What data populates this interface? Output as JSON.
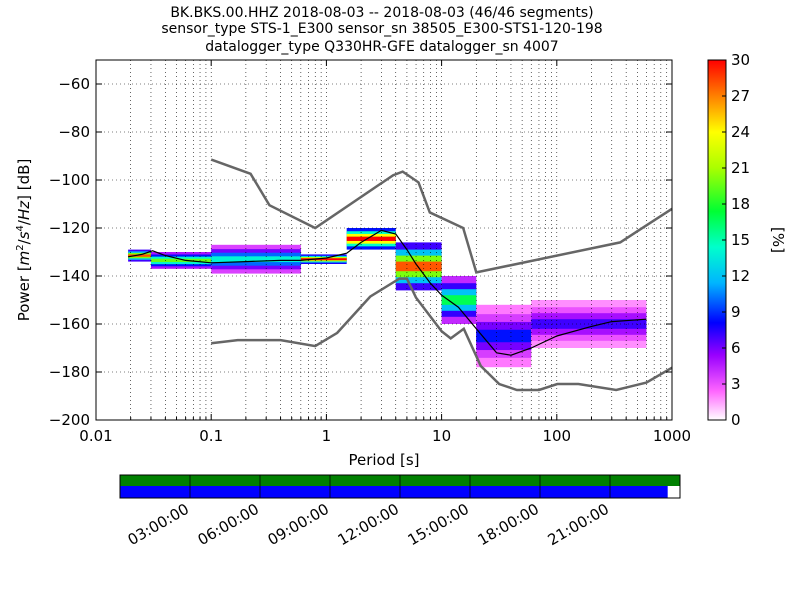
{
  "title_lines": [
    "BK.BKS.00.HHZ   2018-08-03 -- 2018-08-03  (46/46 segments)",
    "sensor_type STS-1_E300 sensor_sn 38505_E300-STS1-120-198",
    "datalogger_type Q330HR-GFE datalogger_sn 4007"
  ],
  "chart_data": {
    "type": "heatmap",
    "xlabel": "Period [s]",
    "ylabel": "Power [m²/s⁴/Hz] [dB]",
    "ylabel_parts": {
      "prefix": "Power [",
      "m": "m",
      "s": "s",
      "hz": "Hz",
      "suffix": "] [dB]",
      "exp_m": "2",
      "exp_s": "4"
    },
    "xscale": "log",
    "xlim": [
      0.01,
      1000
    ],
    "ylim": [
      -200,
      -50
    ],
    "xticks": [
      0.01,
      0.1,
      1,
      10,
      100,
      1000
    ],
    "xtick_labels": [
      "0.01",
      "0.1",
      "1",
      "10",
      "100",
      "1000"
    ],
    "yticks": [
      -200,
      -180,
      -160,
      -140,
      -120,
      -100,
      -80,
      -60
    ],
    "ytick_labels": [
      "−200",
      "−180",
      "−160",
      "−140",
      "−120",
      "−100",
      "−80",
      "−60"
    ],
    "grid": true,
    "colorbar": {
      "label": "[%]",
      "min": 0,
      "max": 30,
      "ticks": [
        0,
        3,
        6,
        9,
        12,
        15,
        18,
        21,
        24,
        27,
        30
      ],
      "tick_labels": [
        "0",
        "3",
        "6",
        "9",
        "12",
        "15",
        "18",
        "21",
        "24",
        "27",
        "30"
      ]
    },
    "noise_models": [
      {
        "points": [
          [
            0.1,
            -91.5
          ],
          [
            0.22,
            -97.4
          ],
          [
            0.32,
            -110.5
          ],
          [
            0.8,
            -120
          ],
          [
            3.8,
            -98
          ],
          [
            4.6,
            -96.5
          ],
          [
            6.3,
            -101
          ],
          [
            7.9,
            -113.5
          ],
          [
            15.4,
            -120
          ],
          [
            20,
            -138.5
          ],
          [
            354.8,
            -126
          ],
          [
            1000,
            -112
          ]
        ]
      },
      {
        "points": [
          [
            0.1,
            -168
          ],
          [
            0.17,
            -166.7
          ],
          [
            0.4,
            -166.7
          ],
          [
            0.8,
            -169.2
          ],
          [
            1.24,
            -163.7
          ],
          [
            2.4,
            -148.6
          ],
          [
            4.3,
            -141.1
          ],
          [
            5.0,
            -141.1
          ],
          [
            6.0,
            -149
          ],
          [
            10,
            -163
          ],
          [
            12,
            -166
          ],
          [
            15.6,
            -162
          ],
          [
            21.9,
            -177.5
          ],
          [
            31.6,
            -185
          ],
          [
            45,
            -187.5
          ],
          [
            70,
            -187.5
          ],
          [
            101,
            -185
          ],
          [
            154,
            -185
          ],
          [
            328,
            -187.5
          ],
          [
            600,
            -184.4
          ],
          [
            1000,
            -178.2
          ]
        ]
      }
    ],
    "mode_curve": [
      [
        0.019,
        -132
      ],
      [
        0.025,
        -131
      ],
      [
        0.031,
        -129.5
      ],
      [
        0.04,
        -131.5
      ],
      [
        0.06,
        -133.5
      ],
      [
        0.1,
        -134.5
      ],
      [
        0.2,
        -134
      ],
      [
        0.4,
        -133.5
      ],
      [
        0.6,
        -133.5
      ],
      [
        1,
        -132.5
      ],
      [
        1.5,
        -130.5
      ],
      [
        2,
        -126
      ],
      [
        3,
        -121
      ],
      [
        4,
        -122.5
      ],
      [
        5,
        -129
      ],
      [
        6,
        -135
      ],
      [
        8,
        -143
      ],
      [
        10,
        -148
      ],
      [
        14,
        -153
      ],
      [
        20,
        -162
      ],
      [
        30,
        -172
      ],
      [
        40,
        -173
      ],
      [
        60,
        -170
      ],
      [
        100,
        -165
      ],
      [
        200,
        -161
      ],
      [
        300,
        -159
      ],
      [
        600,
        -158
      ]
    ],
    "pdf_bands": [
      {
        "x": [
          0.019,
          0.03
        ],
        "y": [
          -134,
          -129
        ],
        "pct": 20
      },
      {
        "x": [
          0.03,
          0.1
        ],
        "y": [
          -137,
          -130
        ],
        "pct": 14
      },
      {
        "x": [
          0.1,
          0.6
        ],
        "y": [
          -139,
          -127
        ],
        "pct": 10
      },
      {
        "x": [
          0.6,
          1.5
        ],
        "y": [
          -135,
          -131
        ],
        "pct": 22
      },
      {
        "x": [
          1.5,
          4
        ],
        "y": [
          -129,
          -120
        ],
        "pct": 24
      },
      {
        "x": [
          4,
          10
        ],
        "y": [
          -146,
          -126
        ],
        "pct": 20
      },
      {
        "x": [
          10,
          20
        ],
        "y": [
          -160,
          -140
        ],
        "pct": 12
      },
      {
        "x": [
          20,
          60
        ],
        "y": [
          -178,
          -152
        ],
        "pct": 6
      },
      {
        "x": [
          60,
          600
        ],
        "y": [
          -170,
          -150
        ],
        "pct": 5
      }
    ]
  },
  "timeline": {
    "tick_labels": [
      "03:00:00",
      "06:00:00",
      "09:00:00",
      "12:00:00",
      "15:00:00",
      "18:00:00",
      "21:00:00"
    ],
    "top_bar_color": "#008000",
    "bottom_bar_color": "#0000ff",
    "bottom_bar_fraction": 0.978
  }
}
